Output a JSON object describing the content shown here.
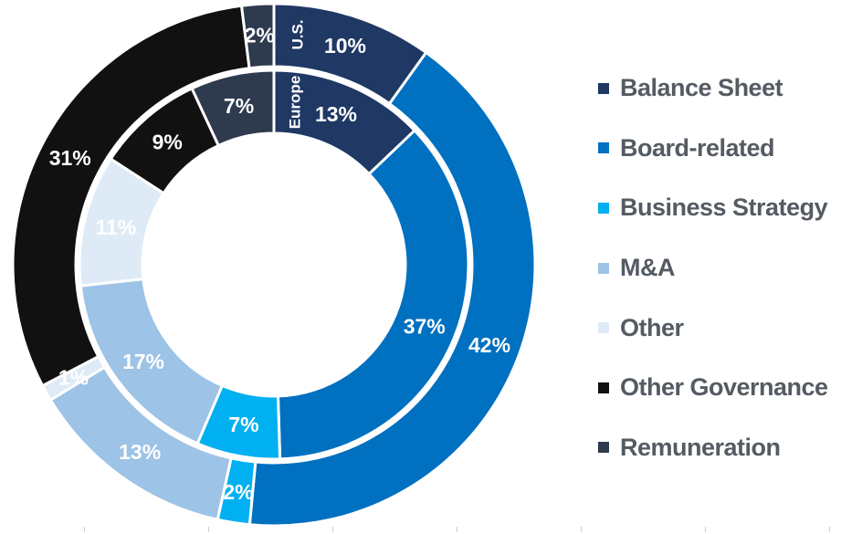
{
  "chart_data": {
    "type": "pie",
    "subtype": "double-donut",
    "categories": [
      "Balance Sheet",
      "Board-related",
      "Business Strategy",
      "M&A",
      "Other",
      "Other Governance",
      "Remuneration"
    ],
    "colors": {
      "Balance Sheet": "#1f3864",
      "Board-related": "#0070c0",
      "Business Strategy": "#00b0f0",
      "M&A": "#9dc3e6",
      "Other": "#deebf7",
      "Other Governance": "#111111",
      "Remuneration": "#2e3a4e"
    },
    "series": [
      {
        "name": "U.S.",
        "ring": "outer",
        "values": [
          10,
          42,
          2,
          13,
          1,
          31,
          2
        ]
      },
      {
        "name": "Europe",
        "ring": "inner",
        "values": [
          13,
          37,
          7,
          17,
          11,
          9,
          7
        ]
      }
    ],
    "data_labels": {
      "outer": [
        "10%",
        "42%",
        "2%",
        "13%",
        "1%",
        "31%",
        "2%"
      ],
      "inner": [
        "13%",
        "37%",
        "7%",
        "17%",
        "11%",
        "9%",
        "7%"
      ]
    },
    "legend_placement": "right"
  }
}
